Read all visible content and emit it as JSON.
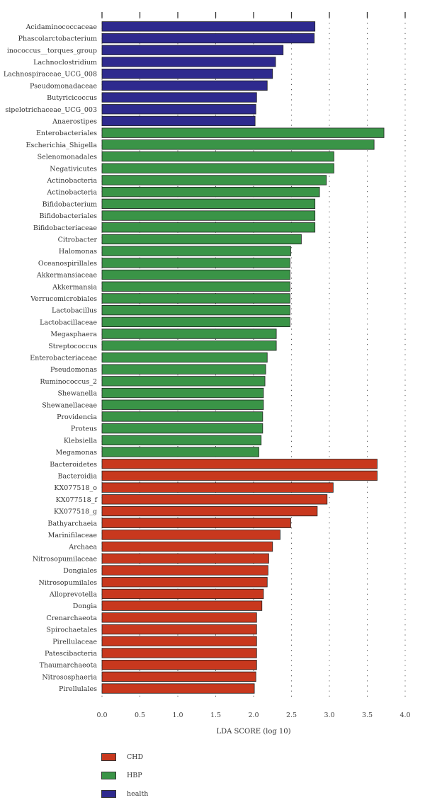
{
  "chart_data": {
    "type": "bar",
    "orientation": "horizontal",
    "xlabel": "LDA SCORE (log 10)",
    "xlim": [
      0,
      4
    ],
    "xticks": [
      "0.0",
      "0.5",
      "1.0",
      "1.5",
      "2.0",
      "2.5",
      "3.0",
      "3.5",
      "4.0"
    ],
    "grid": "vertical dotted",
    "colors": {
      "CHD": "#c8381e",
      "HBP": "#3a9447",
      "health": "#2e2a8e"
    },
    "legend": [
      {
        "name": "CHD",
        "color": "#c8381e"
      },
      {
        "name": "HBP",
        "color": "#3a9447"
      },
      {
        "name": "health",
        "color": "#2e2a8e"
      }
    ],
    "bars": [
      {
        "label": "Acidaminococcaceae",
        "value": 2.81,
        "group": "health"
      },
      {
        "label": "Phascolarctobacterium",
        "value": 2.8,
        "group": "health"
      },
      {
        "label": "inococcus__torques_group",
        "value": 2.39,
        "group": "health"
      },
      {
        "label": "Lachnoclostridium",
        "value": 2.29,
        "group": "health"
      },
      {
        "label": "Lachnospiraceae_UCG_008",
        "value": 2.25,
        "group": "health"
      },
      {
        "label": "Pseudomonadaceae",
        "value": 2.18,
        "group": "health"
      },
      {
        "label": "Butyricicoccus",
        "value": 2.04,
        "group": "health"
      },
      {
        "label": "sipelotrichaceae_UCG_003",
        "value": 2.03,
        "group": "health"
      },
      {
        "label": "Anaerostipes",
        "value": 2.02,
        "group": "health"
      },
      {
        "label": "Enterobacteriales",
        "value": 3.72,
        "group": "HBP"
      },
      {
        "label": "Escherichia_Shigella",
        "value": 3.59,
        "group": "HBP"
      },
      {
        "label": "Selenomonadales",
        "value": 3.06,
        "group": "HBP"
      },
      {
        "label": "Negativicutes",
        "value": 3.06,
        "group": "HBP"
      },
      {
        "label": "Actinobacteria",
        "value": 2.96,
        "group": "HBP"
      },
      {
        "label": "Actinobacteria",
        "value": 2.87,
        "group": "HBP"
      },
      {
        "label": "Bifidobacterium",
        "value": 2.81,
        "group": "HBP"
      },
      {
        "label": "Bifidobacteriales",
        "value": 2.81,
        "group": "HBP"
      },
      {
        "label": "Bifidobacteriaceae",
        "value": 2.81,
        "group": "HBP"
      },
      {
        "label": "Citrobacter",
        "value": 2.63,
        "group": "HBP"
      },
      {
        "label": "Halomonas",
        "value": 2.49,
        "group": "HBP"
      },
      {
        "label": "Oceanospirillales",
        "value": 2.48,
        "group": "HBP"
      },
      {
        "label": "Akkermansiaceae",
        "value": 2.48,
        "group": "HBP"
      },
      {
        "label": "Akkermansia",
        "value": 2.48,
        "group": "HBP"
      },
      {
        "label": "Verrucomicrobiales",
        "value": 2.48,
        "group": "HBP"
      },
      {
        "label": "Lactobacillus",
        "value": 2.48,
        "group": "HBP"
      },
      {
        "label": "Lactobacillaceae",
        "value": 2.48,
        "group": "HBP"
      },
      {
        "label": "Megasphaera",
        "value": 2.3,
        "group": "HBP"
      },
      {
        "label": "Streptococcus",
        "value": 2.3,
        "group": "HBP"
      },
      {
        "label": "Enterobacteriaceae",
        "value": 2.18,
        "group": "HBP"
      },
      {
        "label": "Pseudomonas",
        "value": 2.16,
        "group": "HBP"
      },
      {
        "label": "Ruminococcus_2",
        "value": 2.15,
        "group": "HBP"
      },
      {
        "label": "Shewanella",
        "value": 2.13,
        "group": "HBP"
      },
      {
        "label": "Shewanellaceae",
        "value": 2.13,
        "group": "HBP"
      },
      {
        "label": "Providencia",
        "value": 2.12,
        "group": "HBP"
      },
      {
        "label": "Proteus",
        "value": 2.12,
        "group": "HBP"
      },
      {
        "label": "Klebsiella",
        "value": 2.1,
        "group": "HBP"
      },
      {
        "label": "Megamonas",
        "value": 2.07,
        "group": "HBP"
      },
      {
        "label": "Bacteroidetes",
        "value": 3.63,
        "group": "CHD"
      },
      {
        "label": "Bacteroidia",
        "value": 3.63,
        "group": "CHD"
      },
      {
        "label": "KX077518_o",
        "value": 3.05,
        "group": "CHD"
      },
      {
        "label": "KX077518_f",
        "value": 2.97,
        "group": "CHD"
      },
      {
        "label": "KX077518_g",
        "value": 2.84,
        "group": "CHD"
      },
      {
        "label": "Bathyarchaeia",
        "value": 2.49,
        "group": "CHD"
      },
      {
        "label": "Marinifilaceae",
        "value": 2.35,
        "group": "CHD"
      },
      {
        "label": "Archaea",
        "value": 2.25,
        "group": "CHD"
      },
      {
        "label": "Nitrosopumilaceae",
        "value": 2.2,
        "group": "CHD"
      },
      {
        "label": "Dongiales",
        "value": 2.19,
        "group": "CHD"
      },
      {
        "label": "Nitrosopumilales",
        "value": 2.18,
        "group": "CHD"
      },
      {
        "label": "Alloprevotella",
        "value": 2.13,
        "group": "CHD"
      },
      {
        "label": "Dongia",
        "value": 2.11,
        "group": "CHD"
      },
      {
        "label": "Crenarchaeota",
        "value": 2.04,
        "group": "CHD"
      },
      {
        "label": "Spirochaetales",
        "value": 2.04,
        "group": "CHD"
      },
      {
        "label": "Pirellulaceae",
        "value": 2.04,
        "group": "CHD"
      },
      {
        "label": "Patescibacteria",
        "value": 2.04,
        "group": "CHD"
      },
      {
        "label": "Thaumarchaeota",
        "value": 2.04,
        "group": "CHD"
      },
      {
        "label": "Nitrososphaeria",
        "value": 2.03,
        "group": "CHD"
      },
      {
        "label": "Pirellulales",
        "value": 2.01,
        "group": "CHD"
      }
    ]
  }
}
